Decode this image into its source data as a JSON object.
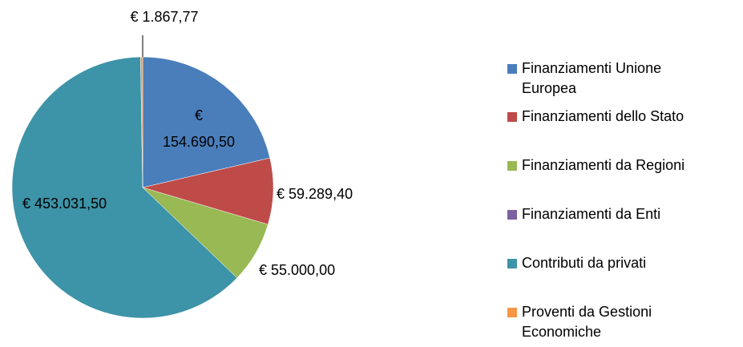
{
  "chart_data": {
    "type": "pie",
    "categories": [
      "Finanziamenti Unione Europea",
      "Finanziamenti dello Stato",
      "Finanziamenti da Regioni",
      "Finanziamenti da Enti",
      "Contributi da privati",
      "Proventi da Gestioni Economiche"
    ],
    "values": [
      154690.5,
      59289.4,
      55000.0,
      0,
      453031.5,
      1867.77
    ],
    "value_labels": [
      "€ 154.690,50",
      "€ 59.289,40",
      "€ 55.000,00",
      null,
      "€ 453.031,50",
      "€ 1.867,77"
    ],
    "colors": [
      "#4a7ebb",
      "#be4b48",
      "#98b954",
      "#7d60a0",
      "#3d93a7",
      "#f79646"
    ],
    "legend": "right"
  }
}
